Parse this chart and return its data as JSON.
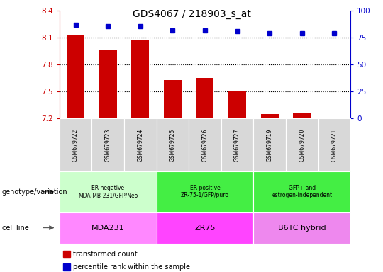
{
  "title": "GDS4067 / 218903_s_at",
  "samples": [
    "GSM679722",
    "GSM679723",
    "GSM679724",
    "GSM679725",
    "GSM679726",
    "GSM679727",
    "GSM679719",
    "GSM679720",
    "GSM679721"
  ],
  "bar_values": [
    8.13,
    7.96,
    8.07,
    7.63,
    7.65,
    7.51,
    7.25,
    7.26,
    7.21
  ],
  "percentile_values": [
    87,
    86,
    86,
    82,
    82,
    81,
    79,
    79,
    79
  ],
  "ylim_left": [
    7.2,
    8.4
  ],
  "ylim_right": [
    0,
    100
  ],
  "yticks_left": [
    7.2,
    7.5,
    7.8,
    8.1,
    8.4
  ],
  "yticks_right": [
    0,
    25,
    50,
    75,
    100
  ],
  "bar_color": "#cc0000",
  "dot_color": "#0000cc",
  "bg_plot": "#ffffff",
  "groups": [
    {
      "label": "ER negative\nMDA-MB-231/GFP/Neo",
      "cell_line": "MDA231",
      "color_geno": "#ccffcc",
      "color_cell": "#ff88ff",
      "start": 0,
      "end": 3
    },
    {
      "label": "ER positive\nZR-75-1/GFP/puro",
      "cell_line": "ZR75",
      "color_geno": "#44ee44",
      "color_cell": "#ff44ff",
      "start": 3,
      "end": 6
    },
    {
      "label": "GFP+ and\nestrogen-independent",
      "cell_line": "B6TC hybrid",
      "color_geno": "#44ee44",
      "color_cell": "#ee88ee",
      "start": 6,
      "end": 9
    }
  ],
  "legend_items": [
    {
      "label": "transformed count",
      "color": "#cc0000"
    },
    {
      "label": "percentile rank within the sample",
      "color": "#0000cc"
    }
  ],
  "genotype_label": "genotype/variation",
  "cell_line_label": "cell line"
}
